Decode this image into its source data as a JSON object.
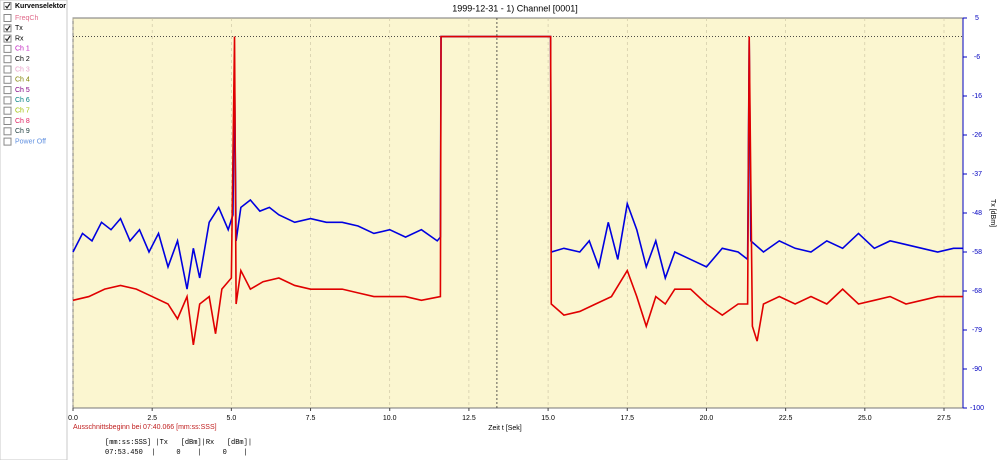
{
  "sidebar": {
    "title": "Kurvenselektor",
    "title_checked": true,
    "items": [
      {
        "label": "FreqCh",
        "checked": false,
        "color": "#e06a8a"
      },
      {
        "label": "Tx",
        "checked": true,
        "color": "#000000"
      },
      {
        "label": "Rx",
        "checked": true,
        "color": "#000000"
      },
      {
        "label": "Ch 1",
        "checked": false,
        "color": "#c020c0"
      },
      {
        "label": "Ch 2",
        "checked": false,
        "color": "#000000"
      },
      {
        "label": "Ch 3",
        "checked": false,
        "color": "#e8a0c8"
      },
      {
        "label": "Ch 4",
        "checked": false,
        "color": "#808000"
      },
      {
        "label": "Ch 5",
        "checked": false,
        "color": "#800080"
      },
      {
        "label": "Ch 6",
        "checked": false,
        "color": "#008080"
      },
      {
        "label": "Ch 7",
        "checked": false,
        "color": "#a0c000"
      },
      {
        "label": "Ch 8",
        "checked": false,
        "color": "#e02060"
      },
      {
        "label": "Ch 9",
        "checked": false,
        "color": "#204040"
      },
      {
        "label": "Power Off",
        "checked": false,
        "color": "#6090e0"
      }
    ]
  },
  "chart_data": {
    "type": "line",
    "title": "1999-12-31 - 1) Channel [0001]",
    "x_label": "Zeit t [Sek]",
    "y_label": "Tx [dBm]",
    "annotation": "Ausschnittsbeginn bei 07:40.066 [mm:ss:SSS]",
    "xlim": [
      0,
      28.1
    ],
    "ylim": [
      -100,
      5
    ],
    "grid": true,
    "background": "#fbf6d0",
    "cursor_x": 13.384,
    "reference_y": 0,
    "xticks": [
      {
        "value": 0,
        "label": "0.0"
      },
      {
        "value": 2.5,
        "label": "2.5"
      },
      {
        "value": 5,
        "label": "5.0"
      },
      {
        "value": 7.5,
        "label": "7.5"
      },
      {
        "value": 10,
        "label": "10.0"
      },
      {
        "value": 12.5,
        "label": "12.5"
      },
      {
        "value": 15,
        "label": "15.0"
      },
      {
        "value": 17.5,
        "label": "17.5"
      },
      {
        "value": 20,
        "label": "20.0"
      },
      {
        "value": 22.5,
        "label": "22.5"
      },
      {
        "value": 25,
        "label": "25.0"
      },
      {
        "value": 27.5,
        "label": "27.5"
      }
    ],
    "yticks": [
      5,
      {
        "value": -5.5,
        "label": "-6"
      },
      -16,
      {
        "value": -26.5,
        "label": "-26"
      },
      -37,
      {
        "value": -47.5,
        "label": "-48"
      },
      -58,
      {
        "value": -68.5,
        "label": "-68"
      },
      -79,
      {
        "value": -89.5,
        "label": "-90"
      },
      -100
    ],
    "series": [
      {
        "name": "Tx",
        "color": "#0000e0",
        "x": [
          0,
          0.3,
          0.6,
          0.9,
          1.2,
          1.5,
          1.8,
          2.1,
          2.4,
          2.7,
          3.0,
          3.3,
          3.6,
          3.8,
          4.0,
          4.3,
          4.6,
          4.9,
          5.05,
          5.1,
          5.15,
          5.3,
          5.6,
          5.9,
          6.2,
          6.5,
          7.0,
          7.5,
          8.0,
          8.5,
          9.0,
          9.5,
          10.0,
          10.5,
          11.0,
          11.5,
          11.6,
          11.62,
          15.08,
          15.1,
          15.5,
          16.0,
          16.3,
          16.6,
          16.9,
          17.2,
          17.5,
          17.8,
          18.1,
          18.4,
          18.7,
          19.0,
          19.5,
          20.0,
          20.5,
          21.0,
          21.3,
          21.35,
          21.4,
          21.8,
          22.3,
          22.8,
          23.3,
          23.8,
          24.3,
          24.8,
          25.3,
          25.8,
          26.3,
          26.8,
          27.3,
          27.8,
          28.1
        ],
        "values": [
          -58,
          -53,
          -55,
          -50,
          -52,
          -49,
          -55,
          -52,
          -58,
          -53,
          -62,
          -55,
          -68,
          -57,
          -65,
          -50,
          -46,
          -52,
          -48,
          -10,
          -55,
          -46,
          -44,
          -47,
          -46,
          -48,
          -50,
          -49,
          -50,
          -50,
          -51,
          -53,
          -52,
          -54,
          -52,
          -55,
          -54,
          0,
          0,
          -58,
          -57,
          -58,
          -55,
          -62,
          -50,
          -60,
          -45,
          -52,
          -62,
          -55,
          -65,
          -58,
          -60,
          -62,
          -57,
          -58,
          -60,
          -1,
          -55,
          -58,
          -55,
          -57,
          -58,
          -55,
          -57,
          -53,
          -57,
          -55,
          -56,
          -57,
          -58,
          -57,
          -57
        ]
      },
      {
        "name": "Rx",
        "color": "#e00000",
        "x": [
          0,
          0.5,
          1.0,
          1.5,
          2.0,
          2.5,
          3.0,
          3.3,
          3.6,
          3.8,
          4.0,
          4.3,
          4.5,
          4.7,
          5.0,
          5.1,
          5.15,
          5.3,
          5.6,
          6.0,
          6.5,
          7.0,
          7.5,
          8.0,
          8.5,
          9.0,
          9.5,
          10.0,
          10.5,
          11.0,
          11.6,
          11.62,
          15.08,
          15.1,
          15.5,
          16.0,
          16.5,
          17.0,
          17.5,
          17.8,
          18.1,
          18.4,
          18.7,
          19.0,
          19.5,
          20.0,
          20.5,
          21.0,
          21.3,
          21.35,
          21.45,
          21.6,
          21.8,
          22.3,
          22.8,
          23.3,
          23.8,
          24.3,
          24.8,
          25.3,
          25.8,
          26.3,
          26.8,
          27.3,
          27.8,
          28.1
        ],
        "values": [
          -71,
          -70,
          -68,
          -67,
          -68,
          -70,
          -72,
          -76,
          -70,
          -83,
          -72,
          -70,
          -80,
          -68,
          -65,
          0,
          -72,
          -63,
          -68,
          -66,
          -65,
          -67,
          -68,
          -68,
          -68,
          -69,
          -70,
          -70,
          -70,
          -71,
          -70,
          0,
          0,
          -72,
          -75,
          -74,
          -72,
          -70,
          -63,
          -70,
          -78,
          -70,
          -72,
          -68,
          -68,
          -72,
          -75,
          -72,
          -72,
          0,
          -78,
          -82,
          -72,
          -70,
          -72,
          -70,
          -72,
          -68,
          -72,
          -71,
          -70,
          -72,
          -71,
          -70,
          -70,
          -70
        ]
      }
    ]
  },
  "readout": {
    "header": "[mm:ss:SSS] |Tx   [dBm]|Rx   [dBm]|",
    "row": "07:53.450  |     0    |     0    |"
  }
}
